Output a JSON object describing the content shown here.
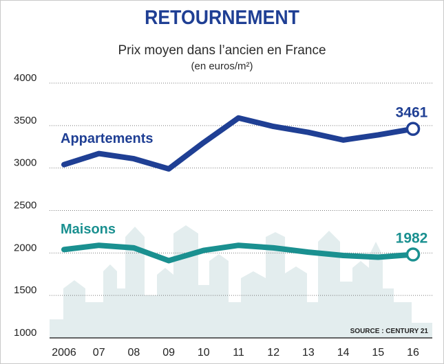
{
  "title": "RETOURNEMENT",
  "subtitle": "Prix moyen dans l’ancien en France",
  "unit": "(en euros/m²)",
  "source": "SOURCE : CENTURY 21",
  "colors": {
    "appartements": "#1f3f94",
    "maisons": "#1a9090",
    "background_skyline": "#e3edee"
  },
  "chart_data": {
    "type": "line",
    "title": "RETOURNEMENT",
    "subtitle": "Prix moyen dans l’ancien en France",
    "ylabel": "(en euros/m²)",
    "categories": [
      "2006",
      "07",
      "08",
      "09",
      "10",
      "11",
      "12",
      "13",
      "14",
      "15",
      "16"
    ],
    "yticks": [
      "4000",
      "3500",
      "3000",
      "2500",
      "2000",
      "1500",
      "1000"
    ],
    "ylim": [
      1000,
      4000
    ],
    "grid": "horizontal dotted",
    "series": [
      {
        "name": "Appartements",
        "color": "#1f3f94",
        "values": [
          3040,
          3170,
          3110,
          2990,
          3300,
          3590,
          3490,
          3420,
          3330,
          3390,
          3461
        ],
        "end_label": "3461"
      },
      {
        "name": "Maisons",
        "color": "#1a9090",
        "values": [
          2040,
          2090,
          2060,
          1910,
          2030,
          2090,
          2060,
          2010,
          1970,
          1950,
          1982
        ],
        "end_label": "1982"
      }
    ]
  }
}
